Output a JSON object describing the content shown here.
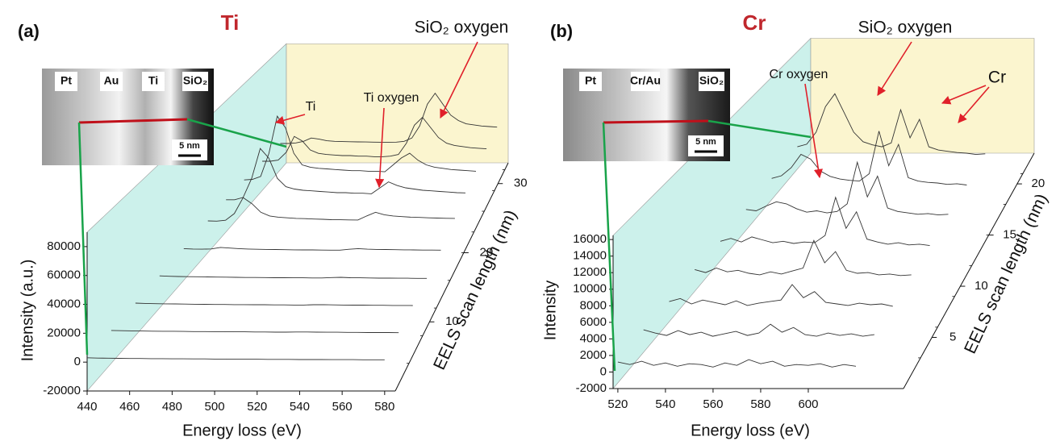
{
  "chart_data": [
    {
      "type": "waterfall",
      "panel_label": "(a)",
      "title": "Ti",
      "title_color": "#c0272d",
      "xlabel": "Energy loss (eV)",
      "ylabel": "Intensity (a.u.)",
      "zlabel": "EELS scan length (nm)",
      "xlim": [
        440,
        585
      ],
      "xticks": [
        440,
        460,
        480,
        500,
        520,
        540,
        560,
        580
      ],
      "ylim": [
        -20000,
        90000
      ],
      "yticks": [
        -20000,
        0,
        20000,
        40000,
        60000,
        80000
      ],
      "zlim": [
        0,
        33
      ],
      "zticks": [
        10,
        20,
        30
      ],
      "line_color": "#333333",
      "x": [
        440,
        445,
        450,
        455,
        460,
        465,
        470,
        475,
        480,
        485,
        490,
        495,
        500,
        505,
        510,
        515,
        520,
        525,
        530,
        535,
        540,
        545,
        550,
        555,
        560,
        565,
        570,
        575,
        580
      ],
      "traces": [
        {
          "z": 0,
          "values": [
            3000,
            2800,
            2700,
            2600,
            2500,
            2500,
            2400,
            2400,
            2300,
            2300,
            2200,
            2200,
            2100,
            2100,
            2000,
            2000,
            2000,
            1900,
            1900,
            1900,
            1800,
            1800,
            1800,
            1700,
            1700,
            1700,
            1600,
            1600,
            1600
          ]
        },
        {
          "z": 4,
          "values": [
            3500,
            3300,
            3200,
            3100,
            3000,
            2900,
            2900,
            2800,
            2700,
            2700,
            2600,
            2600,
            2500,
            2500,
            2400,
            2400,
            2300,
            2300,
            2400,
            2400,
            2300,
            2200,
            2200,
            2100,
            2100,
            2000,
            2000,
            2000,
            1900
          ]
        },
        {
          "z": 8,
          "values": [
            4000,
            3800,
            3600,
            3500,
            3400,
            3300,
            3200,
            3100,
            3000,
            3000,
            2900,
            2900,
            2800,
            2800,
            2700,
            2700,
            2600,
            2600,
            2800,
            2900,
            2700,
            2600,
            2500,
            2500,
            2400,
            2400,
            2300,
            2300,
            2200
          ]
        },
        {
          "z": 12,
          "values": [
            4500,
            4200,
            4000,
            3900,
            3800,
            3700,
            3600,
            3500,
            3400,
            3300,
            3300,
            3200,
            3100,
            3100,
            3000,
            3000,
            2900,
            2900,
            3200,
            3400,
            3100,
            3000,
            2900,
            2800,
            2800,
            2700,
            2700,
            2600,
            2600
          ]
        },
        {
          "z": 16,
          "values": [
            5000,
            4700,
            4600,
            4800,
            6000,
            5500,
            5000,
            4700,
            4500,
            4400,
            4300,
            4200,
            4100,
            4000,
            4000,
            3900,
            3800,
            3800,
            4500,
            5000,
            4600,
            4400,
            4300,
            4200,
            4100,
            4000,
            3900,
            3900,
            3800
          ]
        },
        {
          "z": 20,
          "values": [
            6000,
            5800,
            6500,
            12000,
            25000,
            20000,
            13000,
            10000,
            9000,
            8500,
            8000,
            7800,
            7500,
            7300,
            7000,
            6900,
            6800,
            6700,
            10000,
            13000,
            11000,
            10000,
            9500,
            9000,
            8800,
            8500,
            8300,
            8100,
            8000
          ]
        },
        {
          "z": 23,
          "values": [
            7000,
            7000,
            9000,
            25000,
            50000,
            42000,
            25000,
            18000,
            16000,
            15000,
            14500,
            14000,
            13500,
            13000,
            13000,
            12500,
            12500,
            12000,
            17000,
            22000,
            19000,
            17000,
            16000,
            15000,
            14500,
            14000,
            13500,
            13000,
            12800
          ]
        },
        {
          "z": 26,
          "values": [
            7000,
            7500,
            10000,
            30000,
            62000,
            52000,
            30000,
            20000,
            18000,
            17000,
            16500,
            16000,
            15500,
            15000,
            15000,
            14500,
            14500,
            14000,
            20000,
            26000,
            30000,
            24000,
            20000,
            18000,
            17000,
            16000,
            15500,
            15000,
            14500
          ]
        },
        {
          "z": 29,
          "values": [
            6000,
            6000,
            7000,
            14000,
            28000,
            24000,
            16000,
            13000,
            12000,
            11500,
            11000,
            11000,
            10500,
            10500,
            10000,
            10000,
            10500,
            12000,
            22000,
            38000,
            45000,
            36000,
            27000,
            22000,
            20000,
            19000,
            18000,
            17500,
            17000
          ]
        },
        {
          "z": 32,
          "values": [
            4000,
            4000,
            4500,
            6000,
            9000,
            8000,
            6500,
            6000,
            5800,
            5600,
            5500,
            5400,
            5300,
            5200,
            5200,
            5300,
            6000,
            9000,
            20000,
            40000,
            50000,
            40000,
            30000,
            25000,
            22000,
            21000,
            20000,
            19500,
            19000
          ]
        }
      ],
      "annotations": [
        "Ti",
        "Ti oxygen",
        "SiO₂ oxygen"
      ],
      "inset": {
        "labels": [
          "Pt",
          "Au",
          "Ti",
          "SiO₂"
        ],
        "scale_bar": "5 nm"
      }
    },
    {
      "type": "waterfall",
      "panel_label": "(b)",
      "title": "Cr",
      "title_color": "#c0272d",
      "xlabel": "Energy loss (eV)",
      "ylabel": "Intensity",
      "zlabel": "EELS scan length (nm)",
      "xlim": [
        518,
        640
      ],
      "xticks": [
        520,
        540,
        560,
        580,
        600
      ],
      "ylim": [
        -2000,
        16500
      ],
      "yticks": [
        -2000,
        0,
        2000,
        4000,
        6000,
        8000,
        10000,
        12000,
        14000,
        16000
      ],
      "zlim": [
        0,
        23
      ],
      "zticks": [
        5,
        10,
        15,
        20
      ],
      "line_color": "#333333",
      "x": [
        520,
        525,
        530,
        535,
        540,
        545,
        550,
        555,
        560,
        565,
        570,
        575,
        580,
        585,
        590,
        595,
        600,
        605,
        610,
        615,
        620
      ],
      "traces": [
        {
          "z": 0,
          "values": [
            1200,
            900,
            1300,
            800,
            1100,
            700,
            1000,
            900,
            600,
            1100,
            800,
            1500,
            1000,
            1300,
            700,
            900,
            800,
            1000,
            600,
            900,
            700
          ]
        },
        {
          "z": 3,
          "values": [
            1500,
            1100,
            800,
            1400,
            900,
            1200,
            700,
            1000,
            1300,
            800,
            1100,
            2200,
            1200,
            1800,
            900,
            700,
            1100,
            800,
            1000,
            700,
            900
          ]
        },
        {
          "z": 6,
          "values": [
            1300,
            1700,
            1000,
            1500,
            1200,
            900,
            1400,
            800,
            1100,
            1300,
            1500,
            3500,
            1800,
            2600,
            1200,
            1000,
            800,
            1100,
            900,
            1000,
            700
          ]
        },
        {
          "z": 9,
          "values": [
            1600,
            1200,
            1800,
            1300,
            1500,
            1100,
            900,
            1300,
            1000,
            1400,
            1800,
            5500,
            2500,
            4000,
            1500,
            1100,
            1200,
            900,
            1000,
            800,
            900
          ]
        },
        {
          "z": 12,
          "values": [
            1400,
            1800,
            1300,
            2000,
            1600,
            1200,
            1400,
            1100,
            1300,
            1200,
            2200,
            7500,
            3200,
            5500,
            1700,
            1300,
            1000,
            1200,
            900,
            1000,
            800
          ]
        },
        {
          "z": 15,
          "values": [
            1700,
            1500,
            2200,
            2800,
            2500,
            1800,
            1300,
            1500,
            1200,
            1400,
            2500,
            8500,
            3500,
            6500,
            1900,
            1400,
            1200,
            1000,
            1100,
            900,
            1000
          ]
        },
        {
          "z": 18,
          "values": [
            1900,
            2300,
            3500,
            5500,
            4800,
            3000,
            2200,
            1800,
            1600,
            1500,
            2600,
            9000,
            3800,
            7000,
            2000,
            1500,
            1300,
            1200,
            1000,
            1100,
            900
          ]
        },
        {
          "z": 21,
          "values": [
            2200,
            2600,
            4500,
            8500,
            10500,
            7500,
            4500,
            3000,
            2500,
            2200,
            2800,
            8000,
            3600,
            6500,
            2200,
            1700,
            1500,
            1300,
            1200,
            1000,
            1100
          ]
        }
      ],
      "annotations": [
        "SiO₂ oxygen",
        "Cr oxygen",
        "Cr"
      ],
      "inset": {
        "labels": [
          "Pt",
          "Cr/Au",
          "SiO₂"
        ],
        "scale_bar": "5 nm"
      }
    }
  ]
}
